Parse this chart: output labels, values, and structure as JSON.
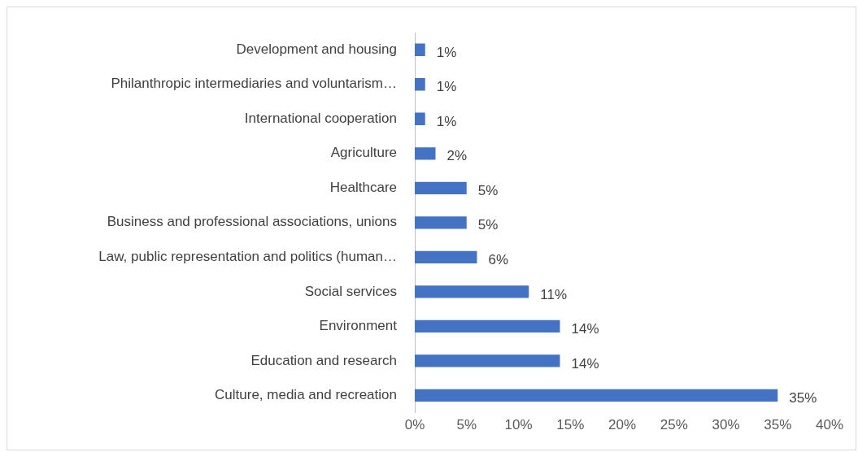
{
  "chart_data": {
    "type": "bar",
    "orientation": "horizontal",
    "categories": [
      "Development and housing",
      "Philanthropic intermediaries and voluntarism…",
      "International cooperation",
      "Agriculture",
      "Healthcare",
      "Business and professional associations, unions",
      "Law, public representation and politics (human…",
      "Social services",
      "Environment",
      "Education and research",
      "Culture, media and recreation"
    ],
    "values": [
      1,
      1,
      1,
      2,
      5,
      5,
      6,
      11,
      14,
      14,
      35
    ],
    "value_labels": [
      "1%",
      "1%",
      "1%",
      "2%",
      "5%",
      "5%",
      "6%",
      "11%",
      "14%",
      "14%",
      "35%"
    ],
    "color": "#4472c4",
    "xlim": [
      0,
      40
    ],
    "xticks": [
      {
        "value": 0,
        "label": "0%"
      },
      {
        "value": 5,
        "label": "5%"
      },
      {
        "value": 10,
        "label": "10%"
      },
      {
        "value": 15,
        "label": "15%"
      },
      {
        "value": 20,
        "label": "20%"
      },
      {
        "value": 25,
        "label": "25%"
      },
      {
        "value": 30,
        "label": "30%"
      },
      {
        "value": 35,
        "label": "35%"
      },
      {
        "value": 40,
        "label": "40%"
      }
    ],
    "grid": false,
    "legend": false
  }
}
